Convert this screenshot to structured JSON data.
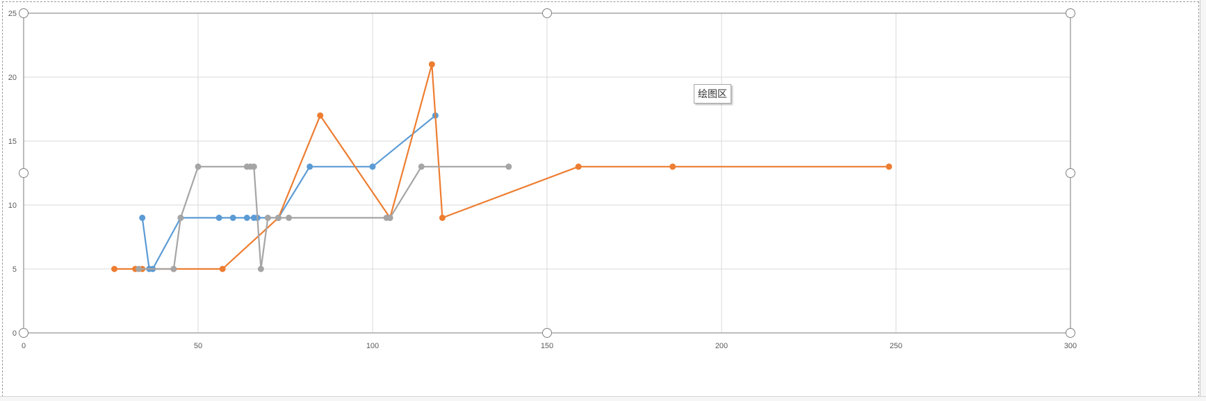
{
  "tooltip": {
    "label": "绘图区"
  },
  "chart_data": {
    "type": "scatter-line",
    "title": "",
    "xlabel": "",
    "ylabel": "",
    "xlim": [
      0,
      300
    ],
    "ylim": [
      0,
      25
    ],
    "xticks": [
      "0",
      "50",
      "100",
      "150",
      "200",
      "250",
      "300"
    ],
    "yticks": [
      "0",
      "5",
      "10",
      "15",
      "20",
      "25"
    ],
    "grid": true,
    "legend": "none",
    "series": [
      {
        "color": "#5b9bd5",
        "x": [
          34,
          36,
          37,
          45,
          56,
          60,
          64,
          66,
          67,
          73,
          82,
          100,
          118
        ],
        "y": [
          9,
          5,
          5,
          9,
          9,
          9,
          9,
          9,
          9,
          9,
          13,
          13,
          17
        ]
      },
      {
        "color": "#ed7d31",
        "x": [
          26,
          32,
          34,
          43,
          57,
          73,
          85,
          105,
          117,
          120,
          159,
          186,
          248
        ],
        "y": [
          5,
          5,
          5,
          5,
          5,
          9,
          17,
          9,
          21,
          9,
          13,
          13,
          13
        ]
      },
      {
        "color": "#a5a5a5",
        "x": [
          33,
          43,
          45,
          50,
          64,
          65,
          66,
          68,
          70,
          73,
          76,
          104,
          105,
          114,
          139
        ],
        "y": [
          5,
          5,
          9,
          13,
          13,
          13,
          13,
          5,
          9,
          9,
          9,
          9,
          9,
          13,
          13
        ]
      }
    ]
  }
}
